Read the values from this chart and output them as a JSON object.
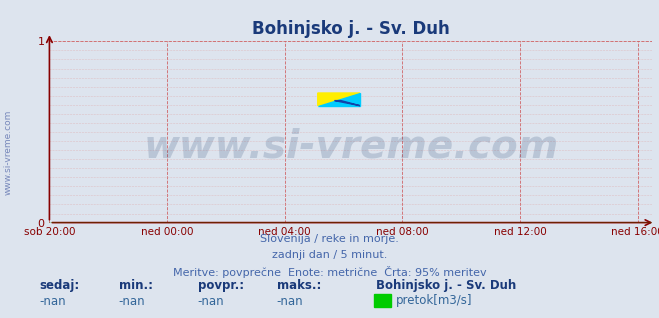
{
  "title": "Bohinjsko j. - Sv. Duh",
  "background_color": "#dde4ee",
  "plot_bg_color": "#dde4ee",
  "grid_color_major": "#cc4444",
  "grid_color_minor": "#ddaaaa",
  "x_tick_labels": [
    "sob 20:00",
    "ned 00:00",
    "ned 04:00",
    "ned 08:00",
    "ned 12:00",
    "ned 16:00"
  ],
  "x_tick_positions": [
    0,
    4,
    8,
    12,
    16,
    20
  ],
  "x_min": 0,
  "x_max": 20.5,
  "y_min": 0,
  "y_max": 1,
  "y_ticks": [
    0,
    1
  ],
  "y_tick_labels": [
    "0",
    "1"
  ],
  "watermark": "www.si-vreme.com",
  "watermark_color": "#1a3a6a",
  "watermark_alpha": 0.18,
  "subtitle_line1": "Slovenija / reke in morje.",
  "subtitle_line2": "zadnji dan / 5 minut.",
  "subtitle_line3": "Meritve: povprečne  Enote: metrične  Črta: 95% meritev",
  "subtitle_color": "#4466aa",
  "label_sedaj": "sedaj:",
  "label_min": "min.:",
  "label_povpr": "povpr.:",
  "label_maks": "maks.:",
  "label_station": "Bohinjsko j. - Sv. Duh",
  "val_sedaj": "-nan",
  "val_min": "-nan",
  "val_povpr": "-nan",
  "val_maks": "-nan",
  "legend_color": "#00cc00",
  "legend_label": "pretok[m3/s]",
  "title_color": "#1a3a7a",
  "axis_color": "#880000",
  "tick_color": "#880000",
  "left_text": "www.si-vreme.com",
  "left_text_color": "#7788bb",
  "logo_color_yellow": "#ffee00",
  "logo_color_cyan": "#00ccff",
  "logo_color_darkblue": "#1144aa",
  "stats_label_color": "#1a3a7a",
  "stats_val_color": "#336699",
  "zero_line_color": "#00aa00"
}
